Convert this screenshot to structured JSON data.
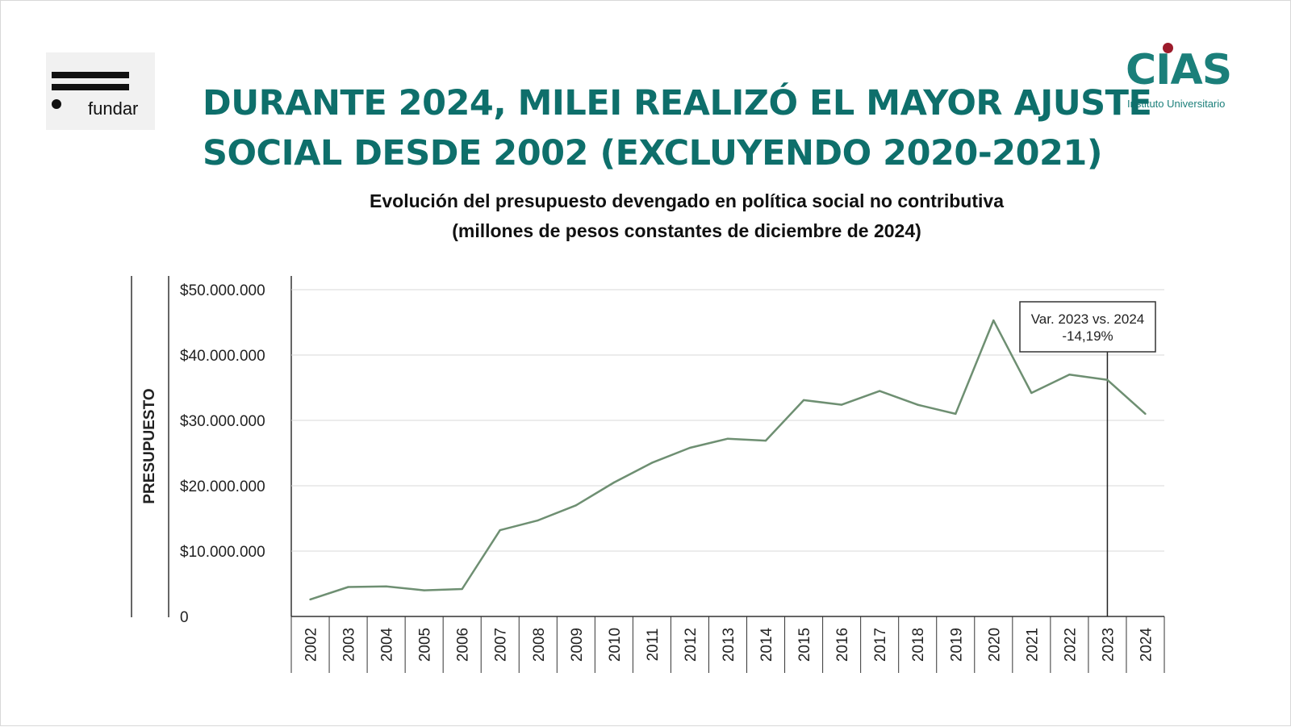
{
  "header": {
    "title_line1": "DURANTE 2024, MILEI REALIZÓ EL MAYOR AJUSTE",
    "title_line2": "SOCIAL DESDE 2002 (EXCLUYENDO 2020-2021)",
    "fundar_logo_text": "fundar",
    "cias_logo_text": "CIAS",
    "cias_logo_subtitle": "Instituto Universitario"
  },
  "colors": {
    "title": "#0e6f6b",
    "line": "#6e8f72",
    "grid": "#d9d9d9",
    "axis": "#333333",
    "cias": "#1b7f7a",
    "cias_dot": "#9c1b2b"
  },
  "chart_data": {
    "type": "line",
    "title": "Evolución del presupuesto devengado en política social no contributiva",
    "subtitle": "(millones de pesos constantes de diciembre de 2024)",
    "ylabel": "PRESUPUESTO",
    "xlabel": "",
    "ylim": [
      0,
      50000000
    ],
    "yticks": [
      0,
      10000000,
      20000000,
      30000000,
      40000000,
      50000000
    ],
    "ytick_labels": [
      "0",
      "$10.000.000",
      "$20.000.000",
      "$30.000.000",
      "$40.000.000",
      "$50.000.000"
    ],
    "grid": true,
    "categories": [
      "2002",
      "2003",
      "2004",
      "2005",
      "2006",
      "2007",
      "2008",
      "2009",
      "2010",
      "2011",
      "2012",
      "2013",
      "2014",
      "2015",
      "2016",
      "2017",
      "2018",
      "2019",
      "2020",
      "2021",
      "2022",
      "2023",
      "2024"
    ],
    "series": [
      {
        "values": [
          2600000,
          4500000,
          4600000,
          4000000,
          4200000,
          13200000,
          14700000,
          17000000,
          20500000,
          23500000,
          25800000,
          27200000,
          26900000,
          33100000,
          32400000,
          34500000,
          32400000,
          31000000,
          45300000,
          34200000,
          37000000,
          36200000,
          31000000
        ]
      }
    ],
    "annotation": {
      "year": "2023",
      "text_line1": "Var. 2023 vs. 2024",
      "text_line2": "-14,19%"
    }
  }
}
